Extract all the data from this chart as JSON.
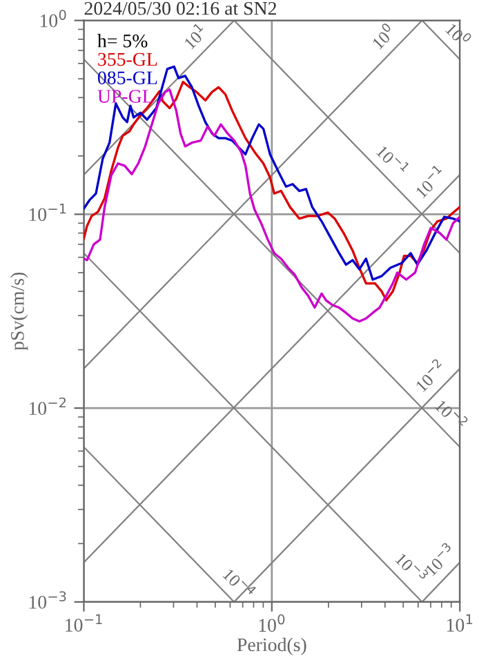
{
  "chart_data": {
    "type": "line",
    "title": "2024/05/30 02:16 at SN2",
    "xlabel": "Period(s)",
    "ylabel": "pSv(cm/s)",
    "legend_title": "h= 5%",
    "legend": "top left",
    "log": "xy",
    "grid": true,
    "xlim": [
      0.1,
      10
    ],
    "ylim": [
      0.001,
      1
    ],
    "xticks": [
      {
        "value": 0.1,
        "label": "10$^{−1}$"
      },
      {
        "value": 1,
        "label": "10$^{0}$"
      },
      {
        "value": 10,
        "label": "10$^{1}$"
      }
    ],
    "yticks": [
      {
        "value": 0.001,
        "label": "10$^{−3}$"
      },
      {
        "value": 0.01,
        "label": "10$^{−2}$"
      },
      {
        "value": 0.1,
        "label": "10$^{−1}$"
      },
      {
        "value": 1,
        "label": "10$^{0}$"
      }
    ],
    "series": [
      {
        "color": "#808080",
        "x": [
          0.1,
          0.63
        ],
        "values": [
          0.0063,
          0.001
        ]
      },
      {
        "color": "#808080",
        "x": [
          0.1,
          6.3
        ],
        "values": [
          0.063,
          0.001
        ]
      },
      {
        "color": "#808080",
        "x": [
          0.1,
          10
        ],
        "values": [
          0.63,
          0.0063
        ]
      },
      {
        "color": "#808080",
        "x": [
          0.63,
          10
        ],
        "values": [
          1,
          0.063
        ]
      },
      {
        "color": "#808080",
        "x": [
          6.3,
          10
        ],
        "values": [
          1,
          0.63
        ]
      },
      {
        "color": "#808080",
        "x": [
          6.3,
          10
        ],
        "values": [
          0.001,
          0.0016
        ]
      },
      {
        "color": "#808080",
        "x": [
          0.63,
          10
        ],
        "values": [
          0.001,
          0.016
        ]
      },
      {
        "color": "#808080",
        "x": [
          0.1,
          10
        ],
        "values": [
          0.0016,
          0.16
        ]
      },
      {
        "color": "#808080",
        "x": [
          0.1,
          6.3
        ],
        "values": [
          0.016,
          1
        ]
      },
      {
        "color": "#808080",
        "x": [
          0.1,
          0.63
        ],
        "values": [
          0.16,
          1
        ]
      },
      {
        "name": "355-GL",
        "color": "#dd0000",
        "x": [
          0.1,
          0.104,
          0.11,
          0.119,
          0.129,
          0.14,
          0.152,
          0.161,
          0.175,
          0.184,
          0.2,
          0.217,
          0.236,
          0.253,
          0.263,
          0.286,
          0.31,
          0.337,
          0.366,
          0.397,
          0.443,
          0.481,
          0.521,
          0.566,
          0.615,
          0.667,
          0.724,
          0.808,
          0.902,
          0.978,
          1.03,
          1.12,
          1.25,
          1.4,
          1.56,
          1.74,
          1.99,
          2.16,
          2.41,
          2.69,
          2.92,
          3.17,
          3.54,
          3.84,
          4.06,
          4.4,
          4.78,
          5.05,
          5.48,
          5.94,
          6.46,
          7.01,
          7.6,
          8.49,
          9.21,
          10
        ],
        "values": [
          0.075,
          0.087,
          0.098,
          0.103,
          0.121,
          0.168,
          0.221,
          0.254,
          0.268,
          0.291,
          0.325,
          0.353,
          0.394,
          0.432,
          0.383,
          0.353,
          0.394,
          0.482,
          0.452,
          0.428,
          0.387,
          0.428,
          0.452,
          0.416,
          0.343,
          0.291,
          0.247,
          0.21,
          0.183,
          0.155,
          0.128,
          0.132,
          0.109,
          0.095,
          0.098,
          0.098,
          0.102,
          0.095,
          0.08,
          0.065,
          0.053,
          0.044,
          0.044,
          0.04,
          0.036,
          0.04,
          0.05,
          0.061,
          0.061,
          0.056,
          0.066,
          0.083,
          0.092,
          0.095,
          0.102,
          0.109
        ]
      },
      {
        "name": "085-GL",
        "color": "#0000cc",
        "x": [
          0.1,
          0.107,
          0.116,
          0.126,
          0.137,
          0.148,
          0.161,
          0.17,
          0.177,
          0.184,
          0.2,
          0.217,
          0.243,
          0.263,
          0.278,
          0.302,
          0.319,
          0.346,
          0.376,
          0.408,
          0.443,
          0.481,
          0.521,
          0.566,
          0.615,
          0.667,
          0.724,
          0.786,
          0.853,
          0.902,
          0.978,
          1.09,
          1.19,
          1.29,
          1.4,
          1.52,
          1.64,
          1.84,
          2.05,
          2.28,
          2.48,
          2.69,
          2.92,
          3.17,
          3.44,
          3.84,
          4.28,
          4.91,
          5.48,
          5.94,
          6.64,
          7.4,
          8.26,
          9.21,
          10
        ],
        "values": [
          0.107,
          0.118,
          0.128,
          0.193,
          0.234,
          0.373,
          0.316,
          0.299,
          0.363,
          0.316,
          0.334,
          0.308,
          0.353,
          0.464,
          0.562,
          0.578,
          0.504,
          0.518,
          0.452,
          0.363,
          0.299,
          0.261,
          0.247,
          0.247,
          0.24,
          0.221,
          0.204,
          0.247,
          0.291,
          0.276,
          0.204,
          0.164,
          0.139,
          0.143,
          0.132,
          0.135,
          0.109,
          0.092,
          0.076,
          0.063,
          0.055,
          0.058,
          0.052,
          0.059,
          0.046,
          0.048,
          0.053,
          0.056,
          0.063,
          0.055,
          0.065,
          0.08,
          0.097,
          0.095,
          0.092
        ]
      },
      {
        "name": "UP-GL",
        "color": "#cc00cc",
        "x": [
          0.1,
          0.104,
          0.113,
          0.122,
          0.129,
          0.14,
          0.152,
          0.165,
          0.18,
          0.195,
          0.211,
          0.23,
          0.249,
          0.271,
          0.286,
          0.31,
          0.327,
          0.346,
          0.376,
          0.419,
          0.455,
          0.494,
          0.536,
          0.582,
          0.631,
          0.686,
          0.724,
          0.765,
          0.808,
          0.877,
          0.952,
          1.03,
          1.12,
          1.22,
          1.32,
          1.44,
          1.56,
          1.69,
          1.84,
          1.94,
          2.1,
          2.28,
          2.48,
          2.69,
          2.92,
          3.17,
          3.44,
          3.74,
          4.06,
          4.4,
          4.65,
          5.19,
          5.78,
          6.46,
          7.01,
          7.82,
          8.49,
          9.21,
          10
        ],
        "values": [
          0.059,
          0.058,
          0.07,
          0.074,
          0.109,
          0.159,
          0.183,
          0.178,
          0.161,
          0.183,
          0.221,
          0.291,
          0.373,
          0.428,
          0.44,
          0.343,
          0.261,
          0.224,
          0.234,
          0.24,
          0.283,
          0.254,
          0.291,
          0.261,
          0.24,
          0.21,
          0.178,
          0.128,
          0.106,
          0.09,
          0.074,
          0.063,
          0.059,
          0.053,
          0.049,
          0.042,
          0.038,
          0.033,
          0.039,
          0.036,
          0.034,
          0.033,
          0.031,
          0.029,
          0.028,
          0.029,
          0.031,
          0.033,
          0.038,
          0.044,
          0.05,
          0.046,
          0.05,
          0.07,
          0.085,
          0.08,
          0.074,
          0.09,
          0.097
        ]
      }
    ],
    "annotations": [
      {
        "text": "10$^{1}$",
        "x": 0.45,
        "y": 0.72
      },
      {
        "text": "10$^{0}$",
        "x": 4.5,
        "y": 0.72
      },
      {
        "text": "10$^{0}$",
        "x": 8.5,
        "y": 0.74
      },
      {
        "text": "10$^{−1}$",
        "x": 8.0,
        "y": 0.128
      },
      {
        "text": "10$^{−1}$",
        "x": 3.8,
        "y": 0.166
      },
      {
        "text": "10$^{−2}$",
        "x": 8.0,
        "y": 0.0128
      },
      {
        "text": "10$^{−2}$",
        "x": 7.8,
        "y": 0.0081
      },
      {
        "text": "10$^{−4}$",
        "x": 0.58,
        "y": 0.00109
      },
      {
        "text": "10$^{−3}$",
        "x": 4.8,
        "y": 0.00131
      },
      {
        "text": "10$^{−3}$",
        "x": 9.0,
        "y": 0.00144
      }
    ]
  }
}
